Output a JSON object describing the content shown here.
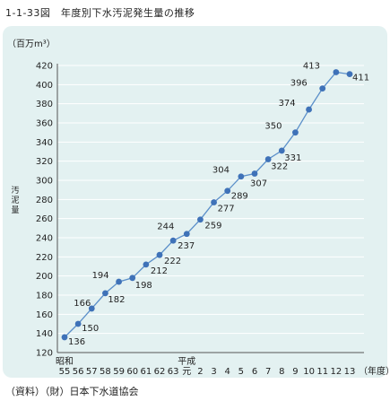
{
  "figure_title": "1-1-33図　年度別下水汚泥発生量の推移",
  "source": "（資料）（財）日本下水道協会",
  "chart_data": {
    "type": "line",
    "title": "",
    "y_unit": "（百万m³）",
    "ylabel": "汚泥量",
    "xlabel": "（年度）",
    "era_labels": [
      "昭和",
      "平成"
    ],
    "ylim": [
      120,
      420
    ],
    "y_ticks": [
      120,
      140,
      160,
      180,
      200,
      220,
      240,
      260,
      280,
      300,
      320,
      340,
      360,
      380,
      400,
      420
    ],
    "grid": true,
    "categories": [
      "55",
      "56",
      "57",
      "58",
      "59",
      "60",
      "61",
      "62",
      "63",
      "元",
      "2",
      "3",
      "4",
      "5",
      "6",
      "7",
      "8",
      "9",
      "10",
      "11",
      "12",
      "13"
    ],
    "series": [
      {
        "values": [
          136,
          150,
          166,
          182,
          194,
          198,
          212,
          222,
          237,
          244,
          259,
          277,
          289,
          304,
          307,
          322,
          331,
          350,
          374,
          396,
          413,
          411
        ]
      }
    ],
    "data_labels": [
      "136",
      "150",
      "166",
      "182",
      "194",
      "198",
      "212",
      "222",
      "237",
      "244",
      "259",
      "277",
      "289",
      "304",
      "307",
      "322",
      "331",
      "350",
      "374",
      "396",
      "413",
      "411"
    ]
  },
  "colors": {
    "panel_bg": "#e3f1f1",
    "line": "#5b8fc9",
    "marker": "#3f72b8",
    "grid": "#ffffff",
    "axis": "#555555"
  }
}
